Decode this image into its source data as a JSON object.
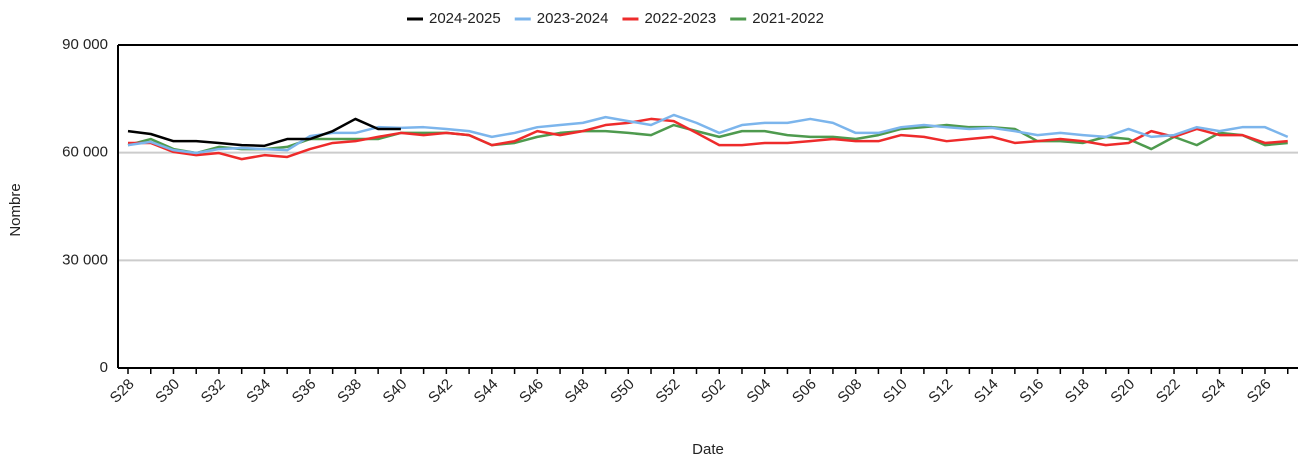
{
  "chart_data": {
    "type": "line",
    "x_label": "Date",
    "y_label": "Nombre",
    "categories": [
      "S28",
      null,
      "S30",
      null,
      "S32",
      null,
      "S34",
      null,
      "S36",
      null,
      "S38",
      null,
      "S40",
      null,
      "S42",
      null,
      "S44",
      null,
      "S46",
      null,
      "S48",
      null,
      "S50",
      null,
      "S52",
      null,
      "S02",
      null,
      "S04",
      null,
      "S06",
      null,
      "S08",
      null,
      "S10",
      null,
      "S12",
      null,
      "S14",
      null,
      "S16",
      null,
      "S18",
      null,
      "S20",
      null,
      "S22",
      null,
      "S24",
      null,
      "S26",
      null
    ],
    "series": [
      {
        "name": "2024-2025",
        "color": "#000000",
        "values": [
          66000,
          65200,
          63200,
          63200,
          62700,
          62100,
          61900,
          63800,
          63800,
          66000,
          69400,
          66600,
          66600,
          null,
          null,
          null,
          null,
          null,
          null,
          null,
          null,
          null,
          null,
          null,
          null,
          null,
          null,
          null,
          null,
          null,
          null,
          null,
          null,
          null,
          null,
          null,
          null,
          null,
          null,
          null,
          null,
          null,
          null,
          null,
          null,
          null,
          null,
          null,
          null,
          null,
          null,
          null
        ]
      },
      {
        "name": "2023-2024",
        "color": "#7cb5ec",
        "values": [
          62100,
          63000,
          60700,
          59900,
          61000,
          61300,
          61000,
          60700,
          64600,
          65500,
          65500,
          67100,
          66900,
          67100,
          66600,
          66000,
          64400,
          65500,
          67100,
          67700,
          68300,
          69900,
          68800,
          67700,
          70500,
          68300,
          65500,
          67700,
          68300,
          68300,
          69400,
          68300,
          65500,
          65500,
          67100,
          67700,
          67100,
          66600,
          66900,
          66000,
          64900,
          65500,
          64900,
          64400,
          66600,
          64400,
          64900,
          67100,
          66000,
          67100,
          67100,
          64400
        ]
      },
      {
        "name": "2022-2023",
        "color": "#ee2b2b",
        "values": [
          62700,
          62700,
          60200,
          59300,
          59900,
          58200,
          59300,
          58800,
          61000,
          62700,
          63200,
          64400,
          65500,
          64900,
          65500,
          64900,
          62100,
          63200,
          66000,
          64900,
          66000,
          67700,
          68300,
          69400,
          68800,
          65500,
          62100,
          62100,
          62700,
          62700,
          63200,
          63800,
          63200,
          63200,
          64900,
          64400,
          63200,
          63800,
          64400,
          62700,
          63200,
          63800,
          63200,
          62100,
          62700,
          66000,
          64400,
          66600,
          64900,
          64900,
          62700,
          63200
        ]
      },
      {
        "name": "2021-2022",
        "color": "#4e9a4e",
        "values": [
          62100,
          63800,
          61000,
          59900,
          61600,
          61000,
          61000,
          61600,
          63800,
          63800,
          63800,
          63800,
          65500,
          65500,
          65500,
          64900,
          62100,
          62700,
          64400,
          65500,
          66000,
          66000,
          65500,
          64900,
          67700,
          66000,
          64400,
          66000,
          66000,
          64900,
          64400,
          64400,
          63800,
          64900,
          66600,
          67100,
          67700,
          67100,
          67100,
          66600,
          63200,
          63200,
          62700,
          64400,
          63800,
          61000,
          64400,
          62100,
          65500,
          64900,
          62100,
          62700
        ]
      }
    ],
    "ylim": [
      0,
      90000
    ],
    "yticks": [
      0,
      {
        "value": 30000,
        "label": "30 000"
      },
      {
        "value": 60000,
        "label": "60 000"
      },
      {
        "value": 90000,
        "label": "90 000"
      }
    ],
    "grid": true
  }
}
